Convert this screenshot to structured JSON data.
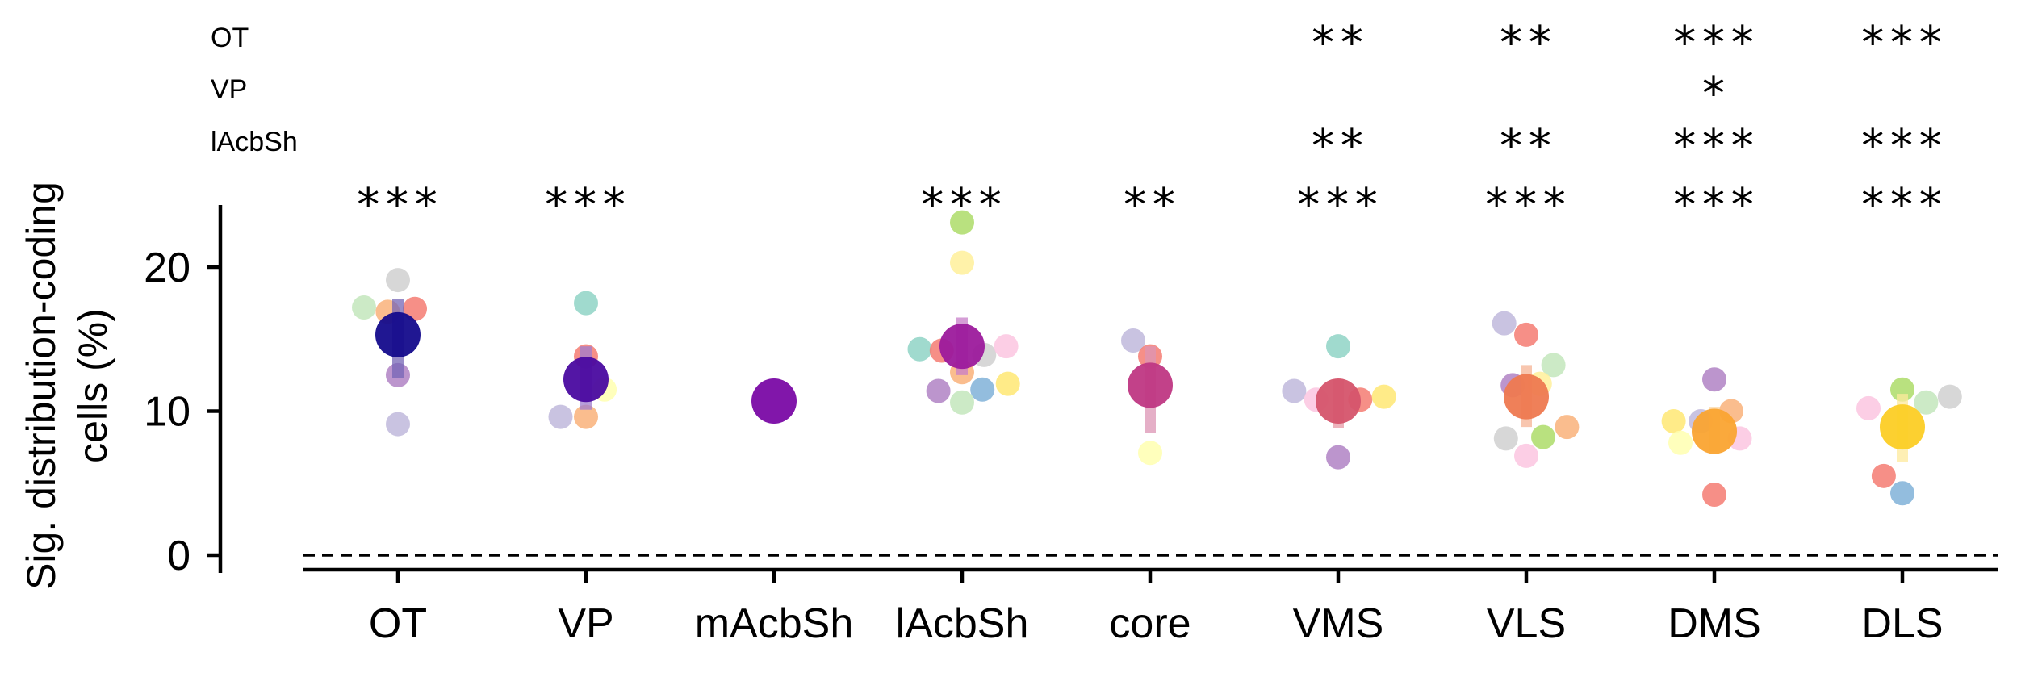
{
  "chart_data": {
    "type": "scatter",
    "ylabel_lines": [
      "Sig. distribution-coding",
      "cells (%)"
    ],
    "categories": [
      "OT",
      "VP",
      "mAcbSh",
      "lAcbSh",
      "core",
      "VMS",
      "VLS",
      "DMS",
      "DLS"
    ],
    "yticks": [
      0,
      10,
      20
    ],
    "ylim": [
      -1.2,
      24.5
    ],
    "reference_line": 0,
    "significance": {
      "rows": [
        {
          "label": "OT",
          "marks": [
            "",
            "",
            "",
            "",
            "",
            "**",
            "**",
            "***",
            "***"
          ]
        },
        {
          "label": "VP",
          "marks": [
            "",
            "",
            "",
            "",
            "",
            "",
            "",
            "*",
            ""
          ]
        },
        {
          "label": "lAcbSh",
          "marks": [
            "",
            "",
            "",
            "",
            "",
            "**",
            "**",
            "***",
            "***"
          ]
        },
        {
          "label": "",
          "marks": [
            "***",
            "***",
            "",
            "***",
            "**",
            "***",
            "***",
            "***",
            "***"
          ]
        }
      ]
    },
    "groups": [
      {
        "category": "OT",
        "mean": 15.3,
        "ci": [
          12.3,
          17.8
        ],
        "mean_color": "#140b8c",
        "bar_color": "#7566b5",
        "points": [
          [
            0.0,
            19.1,
            "#d0d0d0"
          ],
          [
            -0.2,
            17.2,
            "#c3e6bc"
          ],
          [
            -0.06,
            16.9,
            "#f9b27a"
          ],
          [
            0.1,
            17.1,
            "#f47b72"
          ],
          [
            0.0,
            12.5,
            "#b083c4"
          ],
          [
            0.0,
            9.1,
            "#bfb8dc"
          ]
        ]
      },
      {
        "category": "VP",
        "mean": 12.2,
        "ci": [
          10.1,
          14.5
        ],
        "mean_color": "#4a0aa0",
        "bar_color": "#9f7ccd",
        "points": [
          [
            0.0,
            17.5,
            "#8fd4c6"
          ],
          [
            0.0,
            13.8,
            "#f47b72"
          ],
          [
            0.11,
            11.5,
            "#ffffb0"
          ],
          [
            -0.15,
            9.6,
            "#bfb8dc"
          ],
          [
            0.0,
            9.6,
            "#f9b27a"
          ]
        ]
      },
      {
        "category": "mAcbSh",
        "mean": 10.7,
        "ci": [
          10.7,
          10.7
        ],
        "mean_color": "#7a0aa5",
        "bar_color": "#b47fd0",
        "points": []
      },
      {
        "category": "lAcbSh",
        "mean": 14.5,
        "ci": [
          12.5,
          16.5
        ],
        "mean_color": "#9c1a9c",
        "bar_color": "#c77dc8",
        "points": [
          [
            0.0,
            23.1,
            "#addc68"
          ],
          [
            0.0,
            20.3,
            "#fff09a"
          ],
          [
            -0.25,
            14.3,
            "#8fd4c6"
          ],
          [
            -0.12,
            14.2,
            "#f47b72"
          ],
          [
            0.13,
            13.9,
            "#d0d0d0"
          ],
          [
            0.26,
            14.5,
            "#fbc5e0"
          ],
          [
            0.0,
            12.7,
            "#f9b27a"
          ],
          [
            -0.14,
            11.4,
            "#b083c4"
          ],
          [
            0.12,
            11.5,
            "#80b1d8"
          ],
          [
            0.27,
            11.9,
            "#ffe873"
          ],
          [
            0.0,
            10.6,
            "#c3e6bc"
          ]
        ]
      },
      {
        "category": "core",
        "mean": 11.8,
        "ci": [
          8.5,
          14.5
        ],
        "mean_color": "#bf3783",
        "bar_color": "#dc94b4",
        "points": [
          [
            -0.1,
            14.9,
            "#bfb8dc"
          ],
          [
            0.0,
            13.8,
            "#f47b72"
          ],
          [
            0.0,
            7.1,
            "#ffffb0"
          ]
        ]
      },
      {
        "category": "VMS",
        "mean": 10.7,
        "ci": [
          8.8,
          12.2
        ],
        "mean_color": "#d5546b",
        "bar_color": "#e79aa6",
        "points": [
          [
            0.0,
            14.5,
            "#8fd4c6"
          ],
          [
            -0.26,
            11.4,
            "#bfb8dc"
          ],
          [
            -0.13,
            10.8,
            "#fbc5e0"
          ],
          [
            0.13,
            10.8,
            "#f47b72"
          ],
          [
            0.27,
            11.0,
            "#ffe873"
          ],
          [
            0.0,
            6.8,
            "#b083c4"
          ]
        ]
      },
      {
        "category": "VLS",
        "mean": 11.0,
        "ci": [
          8.9,
          13.2
        ],
        "mean_color": "#ee7950",
        "bar_color": "#f5b394",
        "points": [
          [
            -0.13,
            16.1,
            "#bfb8dc"
          ],
          [
            0.0,
            15.3,
            "#f47b72"
          ],
          [
            0.16,
            13.2,
            "#c3e6bc"
          ],
          [
            -0.08,
            11.8,
            "#b083c4"
          ],
          [
            0.08,
            11.9,
            "#fff09a"
          ],
          [
            0.24,
            8.9,
            "#f9b27a"
          ],
          [
            -0.12,
            8.1,
            "#d0d0d0"
          ],
          [
            0.1,
            8.2,
            "#addc68"
          ],
          [
            0.0,
            6.9,
            "#fbc5e0"
          ]
        ]
      },
      {
        "category": "DMS",
        "mean": 8.6,
        "ci": [
          7.2,
          10.3
        ],
        "mean_color": "#faa431",
        "bar_color": "#fbd29a",
        "points": [
          [
            0.0,
            12.2,
            "#b083c4"
          ],
          [
            -0.24,
            9.3,
            "#ffe873"
          ],
          [
            -0.08,
            9.3,
            "#bfb8dc"
          ],
          [
            0.1,
            10.0,
            "#f9b27a"
          ],
          [
            -0.2,
            7.8,
            "#ffffb0"
          ],
          [
            0.15,
            8.1,
            "#fbc5e0"
          ],
          [
            0.0,
            4.2,
            "#f47b72"
          ]
        ]
      },
      {
        "category": "DLS",
        "mean": 8.9,
        "ci": [
          6.5,
          11.2
        ],
        "mean_color": "#fcce25",
        "bar_color": "#fde99b",
        "points": [
          [
            0.0,
            11.5,
            "#addc68"
          ],
          [
            0.14,
            10.6,
            "#c3e6bc"
          ],
          [
            0.28,
            11.0,
            "#d0d0d0"
          ],
          [
            -0.2,
            10.2,
            "#fbc5e0"
          ],
          [
            -0.11,
            5.5,
            "#f47b72"
          ],
          [
            0.0,
            4.3,
            "#80b1d8"
          ]
        ]
      }
    ]
  }
}
